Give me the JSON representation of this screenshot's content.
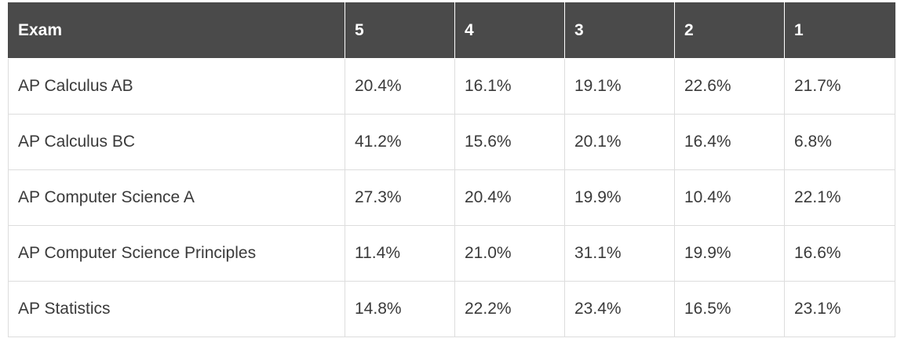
{
  "table": {
    "header": [
      "Exam",
      "5",
      "4",
      "3",
      "2",
      "1"
    ],
    "rows": [
      [
        "AP Calculus AB",
        "20.4%",
        "16.1%",
        "19.1%",
        "22.6%",
        "21.7%"
      ],
      [
        "AP Calculus BC",
        "41.2%",
        "15.6%",
        "20.1%",
        "16.4%",
        "6.8%"
      ],
      [
        "AP Computer Science A",
        "27.3%",
        "20.4%",
        "19.9%",
        "10.4%",
        "22.1%"
      ],
      [
        "AP Computer Science Principles",
        "11.4%",
        "21.0%",
        "31.1%",
        "19.9%",
        "16.6%"
      ],
      [
        "AP Statistics",
        "14.8%",
        "22.2%",
        "23.4%",
        "16.5%",
        "23.1%"
      ]
    ]
  }
}
